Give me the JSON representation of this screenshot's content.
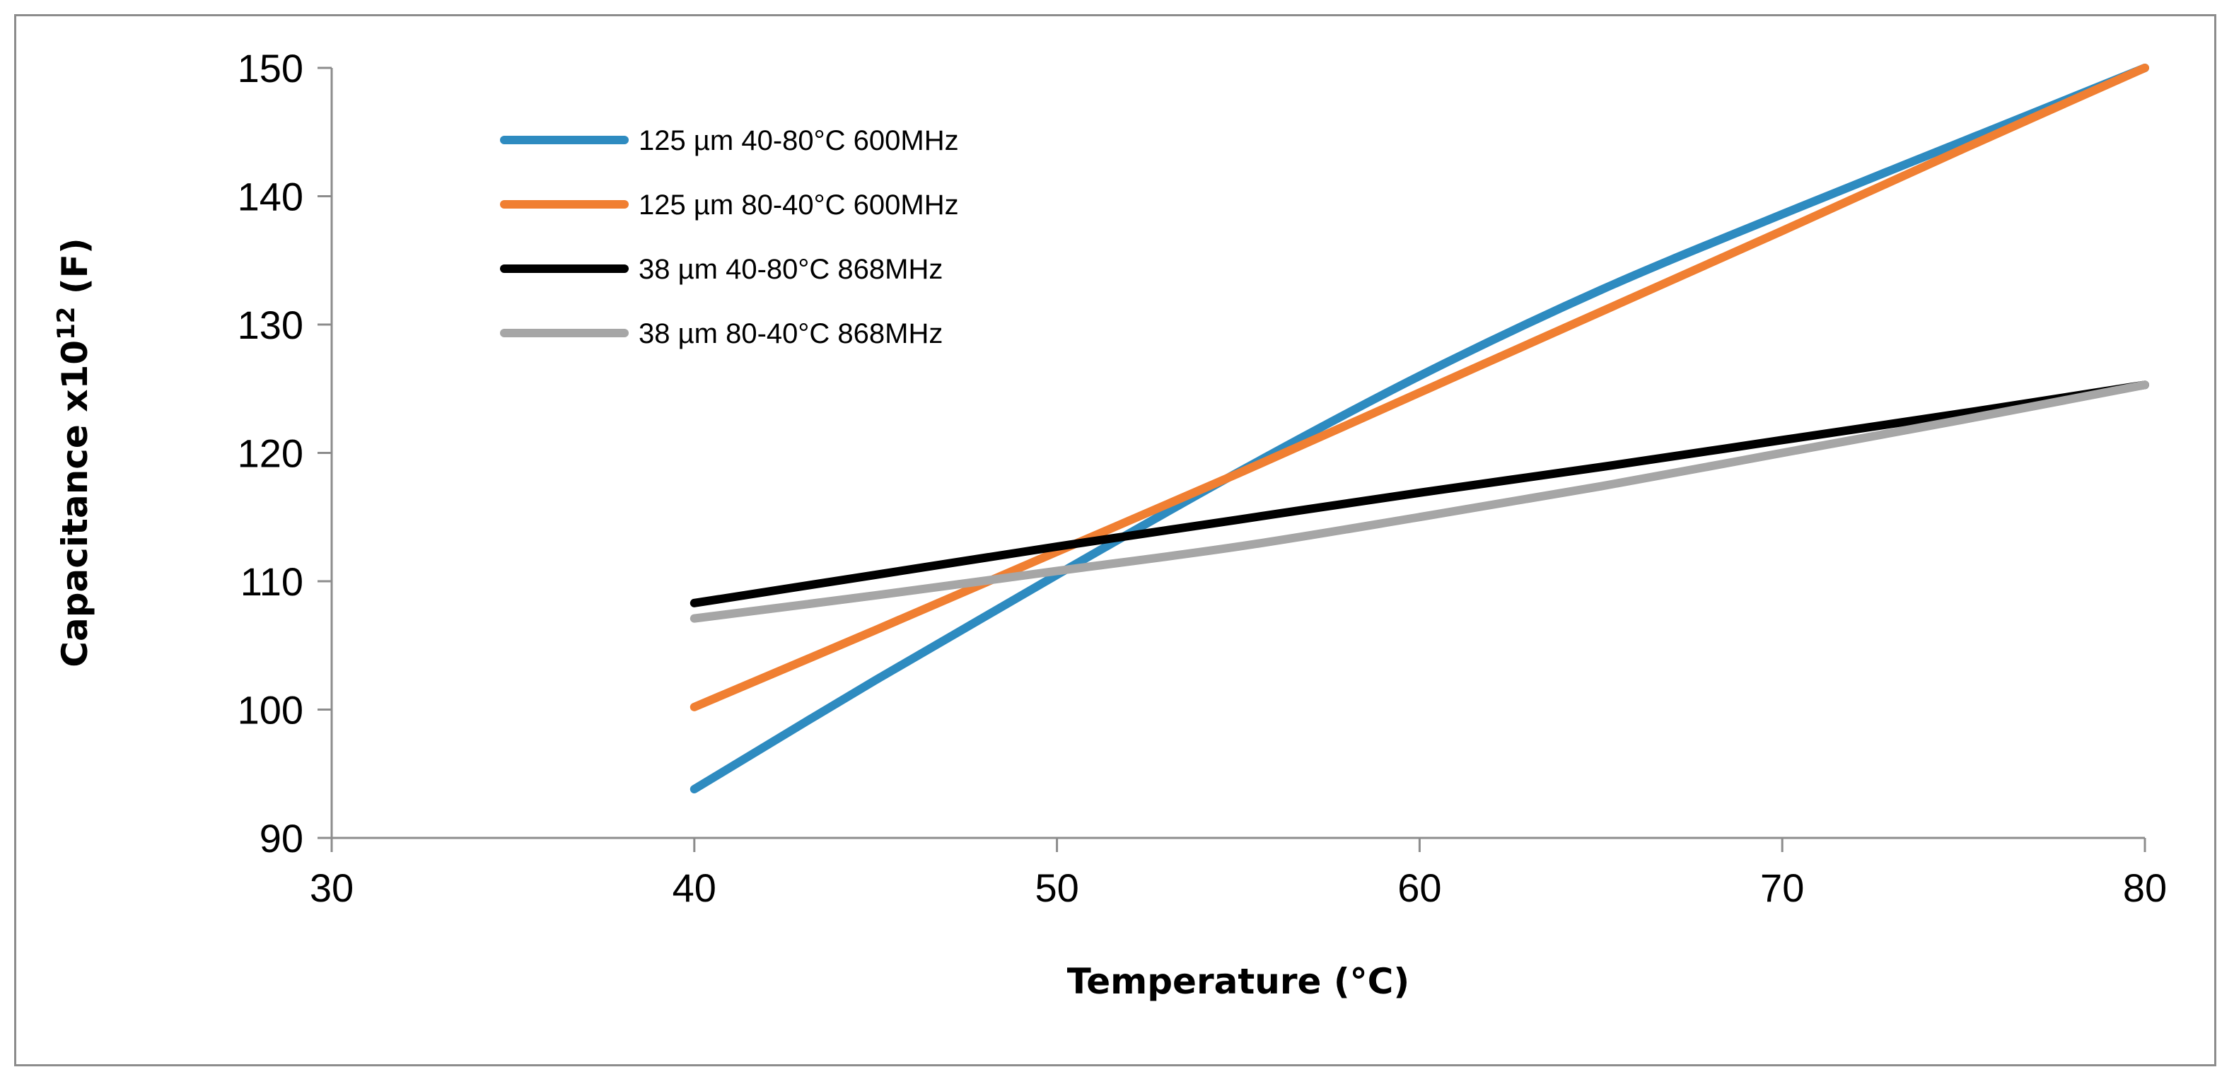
{
  "chart_data": {
    "type": "line",
    "title": "",
    "xlabel": "Temperature (°C)",
    "ylabel_main": "Capacitance x10",
    "ylabel_sup": "12",
    "ylabel_tail": " (F)",
    "xlim": [
      30,
      80
    ],
    "ylim": [
      90,
      150
    ],
    "xticks": [
      30,
      40,
      50,
      60,
      70,
      80
    ],
    "yticks": [
      90,
      100,
      110,
      120,
      130,
      140,
      150
    ],
    "grid": false,
    "legend_position": "top-left",
    "series": [
      {
        "name": "125 µm 40-80°C 600MHz",
        "color": "#2E8BC0",
        "x": [
          40,
          45,
          50,
          55,
          60,
          65,
          70,
          75,
          80
        ],
        "y": [
          93.8,
          102.3,
          110.5,
          118.5,
          126.0,
          132.7,
          138.6,
          144.3,
          150.0
        ]
      },
      {
        "name": "125 µm 80-40°C 600MHz",
        "color": "#F07F32",
        "x": [
          40,
          45,
          50,
          55,
          60,
          65,
          70,
          75,
          80
        ],
        "y": [
          100.2,
          106.2,
          112.3,
          118.4,
          124.7,
          131.0,
          137.3,
          143.7,
          150.0
        ]
      },
      {
        "name": "38 µm 40-80°C 868MHz",
        "color": "#000000",
        "x": [
          40,
          45,
          50,
          55,
          60,
          65,
          70,
          75,
          80
        ],
        "y": [
          108.3,
          110.5,
          112.7,
          114.8,
          116.9,
          118.9,
          121.0,
          123.1,
          125.3
        ]
      },
      {
        "name": "38 µm 80-40°C 868MHz",
        "color": "#A6A6A6",
        "x": [
          40,
          45,
          50,
          55,
          60,
          65,
          70,
          75,
          80
        ],
        "y": [
          107.1,
          108.9,
          110.8,
          112.7,
          115.0,
          117.4,
          120.0,
          122.6,
          125.3
        ]
      }
    ]
  }
}
